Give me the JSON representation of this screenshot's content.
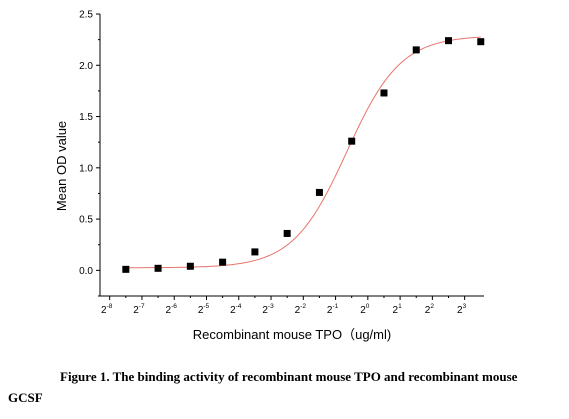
{
  "chart_data": {
    "type": "scatter",
    "title": "",
    "xlabel": "Recombinant mouse TPO（ug/ml)",
    "ylabel": "Mean OD value",
    "x_tick_labels": [
      {
        "base": "2",
        "exp": "-8"
      },
      {
        "base": "2",
        "exp": "-7"
      },
      {
        "base": "2",
        "exp": "-6"
      },
      {
        "base": "2",
        "exp": "-5"
      },
      {
        "base": "2",
        "exp": "-4"
      },
      {
        "base": "2",
        "exp": "-3"
      },
      {
        "base": "2",
        "exp": "-2"
      },
      {
        "base": "2",
        "exp": "-1"
      },
      {
        "base": "2",
        "exp": "0"
      },
      {
        "base": "2",
        "exp": "1"
      },
      {
        "base": "2",
        "exp": "2"
      },
      {
        "base": "2",
        "exp": "3"
      }
    ],
    "y_tick_labels": [
      "0.0",
      "0.5",
      "1.0",
      "1.5",
      "2.0",
      "2.5"
    ],
    "xlim": [
      -8.3,
      3.6
    ],
    "ylim": [
      -0.25,
      2.5
    ],
    "x": [
      -7.5,
      -6.5,
      -5.5,
      -4.5,
      -3.5,
      -2.5,
      -1.5,
      -0.5,
      0.5,
      1.5,
      2.5,
      3.5
    ],
    "y": [
      0.01,
      0.02,
      0.04,
      0.08,
      0.18,
      0.36,
      0.76,
      1.26,
      1.73,
      2.15,
      2.24,
      2.23
    ],
    "fit_curve": {
      "bottom": 0.025,
      "top": 2.29,
      "x50": -0.65,
      "hill_slope": 1.2
    },
    "marker_color": "#000000",
    "curve_color": "#e8746c"
  },
  "caption": {
    "line1": "Figure 1. The binding activity of recombinant mouse TPO and recombinant mouse",
    "line2": "GCSF"
  }
}
